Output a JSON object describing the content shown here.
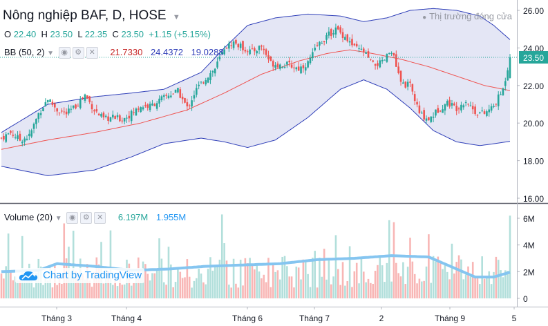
{
  "header": {
    "title": "Nông nghiệp BAF, D, HOSE",
    "market_status": "Thị trường đóng cửa",
    "ohlc": {
      "o_label": "O",
      "o": "22.40",
      "h_label": "H",
      "h": "23.50",
      "l_label": "L",
      "l": "22.35",
      "c_label": "C",
      "c": "23.50",
      "change": "+1.15 (+5.15%)"
    },
    "bb": {
      "label": "BB (50, 2)",
      "mid": "21.7330",
      "upper": "24.4372",
      "lower": "19.0288"
    },
    "volume": {
      "label": "Volume (20)",
      "value": "6.197M",
      "ma": "1.955M"
    }
  },
  "watermark": "Chart by TradingView",
  "colors": {
    "up": "#26a69a",
    "down": "#ef5350",
    "bb_fill": "#e4e6f5",
    "bb_line": "#2e3eb8",
    "ma_line": "#ef5350",
    "vol_ma": "#85c5f0",
    "tv_blue": "#2196f3"
  },
  "chart_data": [
    {
      "type": "candlestick",
      "title": "Nông nghiệp BAF, D, HOSE",
      "price_axis_ticks": [
        "16.00",
        "18.00",
        "20.00",
        "22.00",
        "24.00",
        "26.00"
      ],
      "ylim": [
        16.0,
        26.0
      ],
      "last_price": "23.50",
      "time_axis_labels": [
        "Tháng 3",
        "Tháng 4",
        "Tháng 6",
        "Tháng 7",
        "2",
        "Tháng 9",
        "5"
      ],
      "close_points": [
        [
          0,
          19.2
        ],
        [
          4,
          19.5
        ],
        [
          8,
          19.1
        ],
        [
          12,
          19.3
        ],
        [
          16,
          20.5
        ],
        [
          20,
          21.3
        ],
        [
          24,
          20.7
        ],
        [
          28,
          20.5
        ],
        [
          32,
          20.9
        ],
        [
          36,
          21.5
        ],
        [
          40,
          20.7
        ],
        [
          44,
          20.2
        ],
        [
          48,
          20.3
        ],
        [
          52,
          20.2
        ],
        [
          56,
          20.5
        ],
        [
          60,
          20.9
        ],
        [
          64,
          20.9
        ],
        [
          68,
          21.2
        ],
        [
          72,
          21.5
        ],
        [
          76,
          21.7
        ],
        [
          80,
          20.8
        ],
        [
          84,
          21.8
        ],
        [
          88,
          22.4
        ],
        [
          92,
          22.9
        ],
        [
          96,
          24.0
        ],
        [
          100,
          24.3
        ],
        [
          104,
          24.0
        ],
        [
          108,
          23.8
        ],
        [
          112,
          24.1
        ],
        [
          116,
          23.2
        ],
        [
          120,
          23.1
        ],
        [
          124,
          23.1
        ],
        [
          128,
          22.9
        ],
        [
          132,
          23.2
        ],
        [
          136,
          24.1
        ],
        [
          140,
          24.6
        ],
        [
          144,
          25.0
        ],
        [
          148,
          24.6
        ],
        [
          152,
          24.0
        ],
        [
          156,
          23.8
        ],
        [
          160,
          23.1
        ],
        [
          164,
          23.2
        ],
        [
          168,
          23.9
        ],
        [
          172,
          22.1
        ],
        [
          176,
          22.0
        ],
        [
          180,
          20.5
        ],
        [
          184,
          20.2
        ],
        [
          188,
          20.7
        ],
        [
          192,
          21.1
        ],
        [
          196,
          20.8
        ],
        [
          200,
          21.2
        ],
        [
          204,
          20.6
        ],
        [
          208,
          20.5
        ],
        [
          212,
          20.9
        ],
        [
          216,
          21.8
        ],
        [
          219,
          23.5
        ]
      ],
      "bb_mid_points": [
        [
          0,
          18.6
        ],
        [
          20,
          19.1
        ],
        [
          40,
          19.5
        ],
        [
          60,
          20.0
        ],
        [
          80,
          20.7
        ],
        [
          96,
          21.6
        ],
        [
          112,
          22.6
        ],
        [
          128,
          23.3
        ],
        [
          140,
          23.7
        ],
        [
          150,
          23.9
        ],
        [
          160,
          23.7
        ],
        [
          172,
          23.4
        ],
        [
          184,
          23.0
        ],
        [
          196,
          22.5
        ],
        [
          208,
          22.0
        ],
        [
          219,
          21.73
        ]
      ],
      "bb_upper_points": [
        [
          0,
          19.5
        ],
        [
          20,
          21.0
        ],
        [
          40,
          21.4
        ],
        [
          56,
          21.6
        ],
        [
          70,
          21.8
        ],
        [
          86,
          22.7
        ],
        [
          96,
          24.0
        ],
        [
          106,
          25.2
        ],
        [
          118,
          25.6
        ],
        [
          132,
          25.8
        ],
        [
          146,
          25.7
        ],
        [
          156,
          25.4
        ],
        [
          166,
          25.6
        ],
        [
          176,
          26.0
        ],
        [
          186,
          26.1
        ],
        [
          196,
          26.0
        ],
        [
          206,
          25.7
        ],
        [
          212,
          25.2
        ],
        [
          219,
          24.44
        ]
      ],
      "bb_lower_points": [
        [
          0,
          17.7
        ],
        [
          20,
          17.2
        ],
        [
          40,
          17.5
        ],
        [
          56,
          18.2
        ],
        [
          70,
          18.9
        ],
        [
          86,
          19.2
        ],
        [
          96,
          19.0
        ],
        [
          106,
          18.7
        ],
        [
          118,
          19.1
        ],
        [
          132,
          20.3
        ],
        [
          146,
          21.8
        ],
        [
          156,
          22.3
        ],
        [
          166,
          21.8
        ],
        [
          176,
          20.8
        ],
        [
          186,
          19.6
        ],
        [
          196,
          19.0
        ],
        [
          206,
          18.8
        ],
        [
          212,
          18.9
        ],
        [
          219,
          19.03
        ]
      ],
      "volume_axis_ticks": [
        "0",
        "2M",
        "4M",
        "6M"
      ],
      "volume_last": 6.197,
      "volume_ma_last": 1.955,
      "volume_ma_points": [
        [
          0,
          2.0
        ],
        [
          16,
          2.1
        ],
        [
          24,
          2.6
        ],
        [
          40,
          2.4
        ],
        [
          56,
          2.1
        ],
        [
          72,
          2.2
        ],
        [
          88,
          2.4
        ],
        [
          104,
          2.5
        ],
        [
          120,
          2.6
        ],
        [
          136,
          2.9
        ],
        [
          152,
          3.0
        ],
        [
          168,
          3.2
        ],
        [
          184,
          3.1
        ],
        [
          196,
          2.2
        ],
        [
          204,
          1.6
        ],
        [
          212,
          1.6
        ],
        [
          219,
          1.955
        ]
      ]
    }
  ]
}
